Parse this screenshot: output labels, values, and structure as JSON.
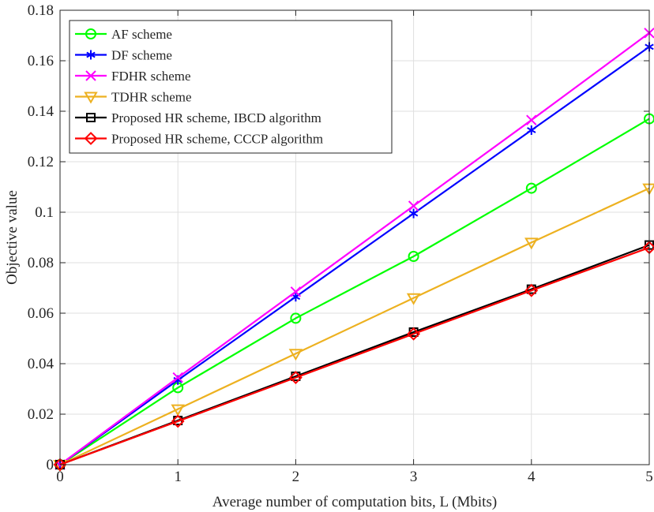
{
  "chart_data": {
    "type": "line",
    "title": "",
    "xlabel": "Average number of computation bits, L (Mbits)",
    "ylabel": "Objective value",
    "xlim": [
      0,
      5
    ],
    "ylim": [
      0,
      0.18
    ],
    "grid": true,
    "legend_position": "top-left",
    "x": [
      0,
      1,
      2,
      3,
      4,
      5
    ],
    "x_tick_labels": [
      "0",
      "1",
      "2",
      "3",
      "4",
      "5"
    ],
    "y_ticks": [
      0,
      0.02,
      0.04,
      0.06,
      0.08,
      0.1,
      0.12,
      0.14,
      0.16,
      0.18
    ],
    "y_tick_labels": [
      "0",
      "0.02",
      "0.04",
      "0.06",
      "0.08",
      "0.1",
      "0.12",
      "0.14",
      "0.16",
      "0.18"
    ],
    "series": [
      {
        "name": "AF scheme",
        "color": "#00ff00",
        "marker": "circle",
        "values": [
          0,
          0.0305,
          0.058,
          0.0825,
          0.1095,
          0.137
        ]
      },
      {
        "name": "DF scheme",
        "color": "#0000ff",
        "marker": "asterisk",
        "values": [
          0,
          0.0335,
          0.0665,
          0.0995,
          0.1325,
          0.1655
        ]
      },
      {
        "name": "FDHR scheme",
        "color": "#ff00ff",
        "marker": "x",
        "values": [
          0,
          0.0345,
          0.0685,
          0.1025,
          0.1365,
          0.171
        ]
      },
      {
        "name": "TDHR scheme",
        "color": "#edb120",
        "marker": "triangle-down",
        "values": [
          0,
          0.022,
          0.044,
          0.066,
          0.088,
          0.1095
        ]
      },
      {
        "name": "Proposed HR scheme, IBCD algorithm",
        "color": "#000000",
        "marker": "square",
        "values": [
          0,
          0.0175,
          0.035,
          0.0525,
          0.0695,
          0.087
        ]
      },
      {
        "name": "Proposed HR scheme, CCCP algorithm",
        "color": "#ff0000",
        "marker": "diamond",
        "values": [
          0,
          0.0172,
          0.0345,
          0.0518,
          0.069,
          0.086
        ]
      }
    ]
  }
}
